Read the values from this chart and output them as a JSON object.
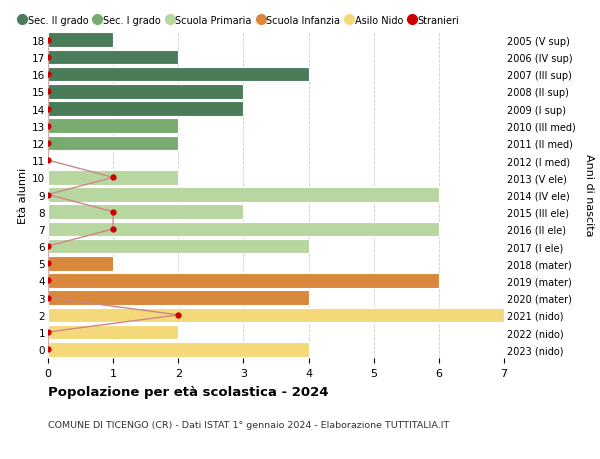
{
  "ages": [
    18,
    17,
    16,
    15,
    14,
    13,
    12,
    11,
    10,
    9,
    8,
    7,
    6,
    5,
    4,
    3,
    2,
    1,
    0
  ],
  "right_labels": [
    "2005 (V sup)",
    "2006 (IV sup)",
    "2007 (III sup)",
    "2008 (II sup)",
    "2009 (I sup)",
    "2010 (III med)",
    "2011 (II med)",
    "2012 (I med)",
    "2013 (V ele)",
    "2014 (IV ele)",
    "2015 (III ele)",
    "2016 (II ele)",
    "2017 (I ele)",
    "2018 (mater)",
    "2019 (mater)",
    "2020 (mater)",
    "2021 (nido)",
    "2022 (nido)",
    "2023 (nido)"
  ],
  "bar_values": [
    1,
    2,
    4,
    3,
    3,
    2,
    2,
    0,
    2,
    6,
    3,
    6,
    4,
    1,
    6,
    4,
    7,
    2,
    4
  ],
  "bar_colors": [
    "#4a7c59",
    "#4a7c59",
    "#4a7c59",
    "#4a7c59",
    "#4a7c59",
    "#7aab6e",
    "#7aab6e",
    "#7aab6e",
    "#b8d6a0",
    "#b8d6a0",
    "#b8d6a0",
    "#b8d6a0",
    "#b8d6a0",
    "#d9873a",
    "#d9873a",
    "#d9873a",
    "#f5d87a",
    "#f5d87a",
    "#f5d87a"
  ],
  "stranieri_values": [
    0,
    0,
    0,
    0,
    0,
    0,
    0,
    0,
    1,
    0,
    1,
    1,
    0,
    0,
    0,
    0,
    2,
    0,
    0
  ],
  "stranieri_color": "#cc0000",
  "line_color": "#cc8888",
  "title": "Popolazione per età scolastica - 2024",
  "subtitle": "COMUNE DI TICENGO (CR) - Dati ISTAT 1° gennaio 2024 - Elaborazione TUTTITALIA.IT",
  "ylabel_left": "Età alunni",
  "ylabel_right": "Anni di nascita",
  "xlim": [
    0,
    7
  ],
  "xticks": [
    0,
    1,
    2,
    3,
    4,
    5,
    6,
    7
  ],
  "legend_entries": [
    {
      "label": "Sec. II grado",
      "color": "#4a7c59"
    },
    {
      "label": "Sec. I grado",
      "color": "#7aab6e"
    },
    {
      "label": "Scuola Primaria",
      "color": "#b8d6a0"
    },
    {
      "label": "Scuola Infanzia",
      "color": "#d9873a"
    },
    {
      "label": "Asilo Nido",
      "color": "#f5d87a"
    },
    {
      "label": "Stranieri",
      "color": "#cc0000"
    }
  ],
  "bg_color": "#ffffff",
  "grid_color": "#cccccc",
  "bar_height": 0.85,
  "figsize": [
    6.0,
    4.6
  ],
  "dpi": 100
}
